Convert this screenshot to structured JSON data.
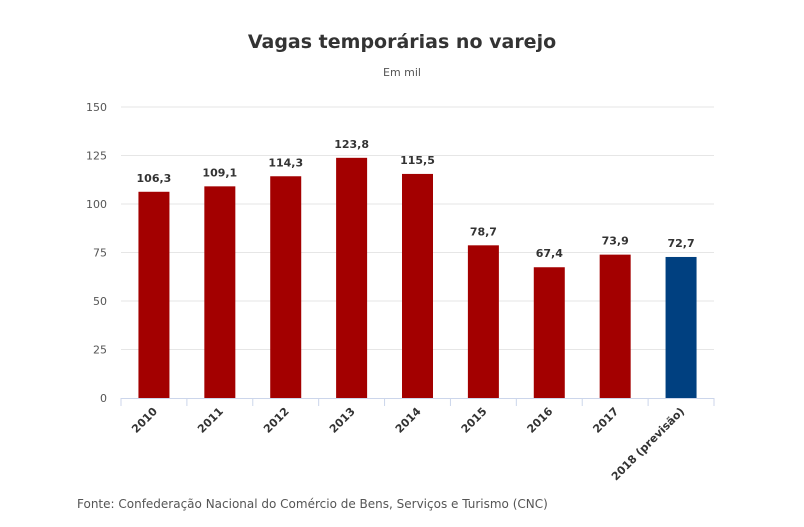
{
  "chart_data": {
    "type": "bar",
    "title": "Vagas temporárias no varejo",
    "subtitle": "Em mil",
    "categories": [
      "2010",
      "2011",
      "2012",
      "2013",
      "2014",
      "2015",
      "2016",
      "2017",
      "2018 (previsão)"
    ],
    "values": [
      106.3,
      109.1,
      114.3,
      123.8,
      115.5,
      78.7,
      67.4,
      73.9,
      72.7
    ],
    "value_labels": [
      "106,3",
      "109,1",
      "114,3",
      "123,8",
      "115,5",
      "78,7",
      "67,4",
      "73,9",
      "72,7"
    ],
    "bar_colors": [
      "#a30000",
      "#a30000",
      "#a30000",
      "#a30000",
      "#a30000",
      "#a30000",
      "#a30000",
      "#a30000",
      "#004080"
    ],
    "y_ticks": [
      0,
      25,
      50,
      75,
      100,
      125,
      150
    ],
    "ylim": [
      0,
      150
    ],
    "xlabel": "",
    "ylabel": "",
    "grid": true,
    "legend": "none"
  },
  "source": "Fonte: Confederação Nacional do Comércio de Bens, Serviços e Turismo (CNC)",
  "colors": {
    "bar": "#a30000",
    "forecast_bar": "#004080",
    "gridline": "#e6e6e6",
    "axis": "#ccd6eb"
  }
}
